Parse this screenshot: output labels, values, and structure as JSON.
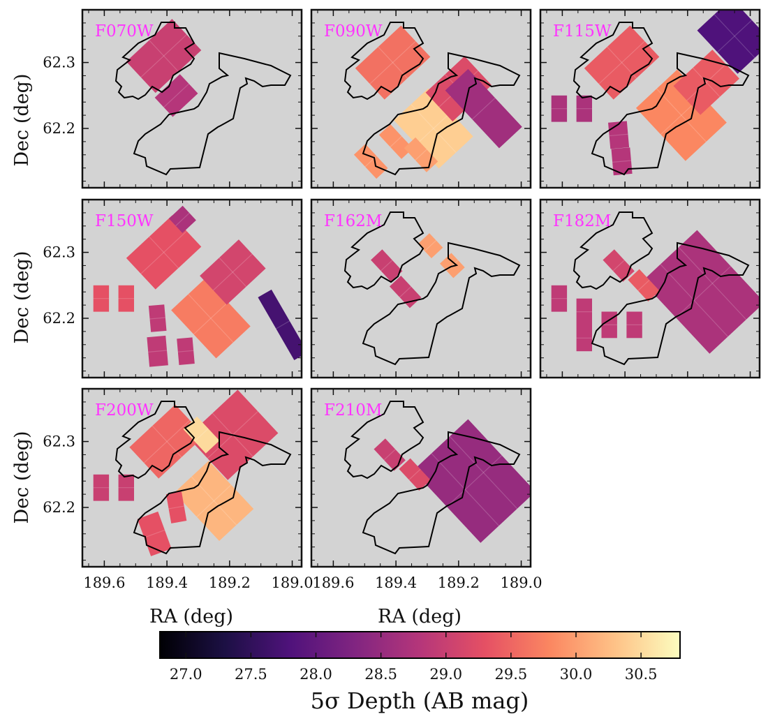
{
  "colors": {
    "panel_background": "#d3d3d3",
    "label_color": "#ff33ff",
    "footprint_outline": "#000000",
    "colormap": "magma",
    "colormap_stops": [
      "#000004",
      "#1c1044",
      "#4f127b",
      "#812581",
      "#b5367a",
      "#e55064",
      "#fb8761",
      "#fec287",
      "#fcfdbf"
    ]
  },
  "chart_data": {
    "type": "heatmap",
    "layout": "3x3 grid of sky-map panels, 8 panels used",
    "xlabel": "RA (deg)",
    "ylabel": "Dec (deg)",
    "x_ticks": [
      189.6,
      189.4,
      189.2,
      189.0
    ],
    "x_tick_labels": [
      "189.6",
      "189.4",
      "189.2",
      "189.0"
    ],
    "y_ticks": [
      62.2,
      62.3
    ],
    "y_tick_labels": [
      "62.2",
      "62.3"
    ],
    "xlim": [
      189.67,
      188.97
    ],
    "ylim": [
      62.11,
      62.38
    ],
    "colorbar": {
      "title": "5σ Depth (AB mag)",
      "range": [
        26.8,
        30.8
      ],
      "ticks": [
        27.0,
        27.5,
        28.0,
        28.5,
        29.0,
        29.5,
        30.0,
        30.5
      ],
      "tick_labels": [
        "27.0",
        "27.5",
        "28.0",
        "28.5",
        "29.0",
        "29.5",
        "30.0",
        "30.5"
      ]
    },
    "panels": [
      {
        "filter": "F070W",
        "row": 0,
        "col": 0,
        "show_ylabels": true,
        "show_xlabels": false,
        "fields": [
          {
            "ra": 189.41,
            "dec": 62.31,
            "depth": 29.0,
            "w": 0.2,
            "h": 0.065,
            "angle": -43
          },
          {
            "ra": 189.37,
            "dec": 62.25,
            "depth": 28.8,
            "w": 0.11,
            "h": 0.04,
            "angle": -43
          }
        ],
        "outlines": [
          "deep-west",
          "deep-east"
        ]
      },
      {
        "filter": "F090W",
        "row": 0,
        "col": 1,
        "show_ylabels": false,
        "show_xlabels": false,
        "fields": [
          {
            "ra": 189.41,
            "dec": 62.3,
            "depth": 29.6,
            "w": 0.2,
            "h": 0.065,
            "angle": -43
          },
          {
            "ra": 189.28,
            "dec": 62.2,
            "depth": 30.4,
            "w": 0.15,
            "h": 0.1,
            "angle": -43
          },
          {
            "ra": 189.2,
            "dec": 62.26,
            "depth": 29.2,
            "w": 0.17,
            "h": 0.06,
            "angle": -43
          },
          {
            "ra": 189.48,
            "dec": 62.15,
            "depth": 29.9,
            "w": 0.05,
            "h": 0.05,
            "angle": -43
          },
          {
            "ra": 189.4,
            "dec": 62.18,
            "depth": 29.9,
            "w": 0.05,
            "h": 0.05,
            "angle": -43
          },
          {
            "ra": 189.32,
            "dec": 62.16,
            "depth": 30.0,
            "w": 0.05,
            "h": 0.05,
            "angle": -43
          },
          {
            "ra": 189.12,
            "dec": 62.23,
            "depth": 28.6,
            "w": 0.1,
            "h": 0.12,
            "angle": -43
          }
        ],
        "outlines": [
          "deep-west",
          "deep-east"
        ]
      },
      {
        "filter": "F115W",
        "row": 0,
        "col": 2,
        "show_ylabels": false,
        "show_xlabels": false,
        "fields": [
          {
            "ra": 189.41,
            "dec": 62.3,
            "depth": 29.4,
            "w": 0.2,
            "h": 0.065,
            "angle": -43
          },
          {
            "ra": 189.22,
            "dec": 62.22,
            "depth": 29.8,
            "w": 0.18,
            "h": 0.11,
            "angle": -43
          },
          {
            "ra": 189.14,
            "dec": 62.27,
            "depth": 29.4,
            "w": 0.17,
            "h": 0.06,
            "angle": -43
          },
          {
            "ra": 189.05,
            "dec": 62.34,
            "depth": 27.8,
            "w": 0.15,
            "h": 0.09,
            "angle": -43
          },
          {
            "ra": 189.61,
            "dec": 62.23,
            "depth": 28.7,
            "w": 0.05,
            "h": 0.04,
            "angle": 0
          },
          {
            "ra": 189.53,
            "dec": 62.23,
            "depth": 28.7,
            "w": 0.05,
            "h": 0.04,
            "angle": 0
          },
          {
            "ra": 189.42,
            "dec": 62.19,
            "depth": 28.8,
            "w": 0.06,
            "h": 0.04,
            "angle": -5
          },
          {
            "ra": 189.41,
            "dec": 62.15,
            "depth": 28.8,
            "w": 0.06,
            "h": 0.04,
            "angle": -5
          }
        ],
        "outlines": [
          "deep-west",
          "deep-east"
        ]
      },
      {
        "filter": "F150W",
        "row": 1,
        "col": 0,
        "show_ylabels": true,
        "show_xlabels": false,
        "fields": [
          {
            "ra": 189.41,
            "dec": 62.3,
            "depth": 29.3,
            "w": 0.2,
            "h": 0.065,
            "angle": -43
          },
          {
            "ra": 189.26,
            "dec": 62.2,
            "depth": 29.7,
            "w": 0.15,
            "h": 0.1,
            "angle": -43
          },
          {
            "ra": 189.19,
            "dec": 62.27,
            "depth": 29.1,
            "w": 0.17,
            "h": 0.06,
            "angle": -43
          },
          {
            "ra": 189.03,
            "dec": 62.19,
            "depth": 27.7,
            "w": 0.05,
            "h": 0.11,
            "angle": -30
          },
          {
            "ra": 189.61,
            "dec": 62.23,
            "depth": 29.3,
            "w": 0.05,
            "h": 0.04,
            "angle": 0
          },
          {
            "ra": 189.53,
            "dec": 62.23,
            "depth": 29.3,
            "w": 0.05,
            "h": 0.04,
            "angle": 0
          },
          {
            "ra": 189.43,
            "dec": 62.2,
            "depth": 28.9,
            "w": 0.05,
            "h": 0.04,
            "angle": -5
          },
          {
            "ra": 189.43,
            "dec": 62.15,
            "depth": 28.9,
            "w": 0.06,
            "h": 0.045,
            "angle": -5
          },
          {
            "ra": 189.34,
            "dec": 62.15,
            "depth": 28.9,
            "w": 0.05,
            "h": 0.04,
            "angle": -5
          },
          {
            "ra": 189.35,
            "dec": 62.35,
            "depth": 28.7,
            "w": 0.06,
            "h": 0.03,
            "angle": -43
          }
        ],
        "outlines": []
      },
      {
        "filter": "F162M",
        "row": 1,
        "col": 1,
        "show_ylabels": false,
        "show_xlabels": false,
        "fields": [
          {
            "ra": 189.43,
            "dec": 62.28,
            "depth": 29.0,
            "w": 0.05,
            "h": 0.045,
            "angle": -43
          },
          {
            "ra": 189.37,
            "dec": 62.24,
            "depth": 29.0,
            "w": 0.05,
            "h": 0.045,
            "angle": -43
          },
          {
            "ra": 189.29,
            "dec": 62.31,
            "depth": 30.0,
            "w": 0.05,
            "h": 0.03,
            "angle": -43
          },
          {
            "ra": 189.22,
            "dec": 62.28,
            "depth": 30.0,
            "w": 0.05,
            "h": 0.03,
            "angle": -43
          }
        ],
        "outlines": [
          "deep-west",
          "deep-east"
        ]
      },
      {
        "filter": "F182M",
        "row": 1,
        "col": 2,
        "show_ylabels": false,
        "show_xlabels": false,
        "fields": [
          {
            "ra": 189.15,
            "dec": 62.24,
            "depth": 28.7,
            "w": 0.24,
            "h": 0.15,
            "angle": -43
          },
          {
            "ra": 189.42,
            "dec": 62.28,
            "depth": 29.1,
            "w": 0.05,
            "h": 0.045,
            "angle": -43
          },
          {
            "ra": 189.34,
            "dec": 62.25,
            "depth": 29.4,
            "w": 0.05,
            "h": 0.045,
            "angle": -43
          },
          {
            "ra": 189.61,
            "dec": 62.23,
            "depth": 28.9,
            "w": 0.05,
            "h": 0.04,
            "angle": 0
          },
          {
            "ra": 189.53,
            "dec": 62.21,
            "depth": 28.9,
            "w": 0.05,
            "h": 0.04,
            "angle": 0
          },
          {
            "ra": 189.53,
            "dec": 62.17,
            "depth": 28.9,
            "w": 0.05,
            "h": 0.04,
            "angle": 0
          },
          {
            "ra": 189.45,
            "dec": 62.19,
            "depth": 28.9,
            "w": 0.05,
            "h": 0.04,
            "angle": 0
          },
          {
            "ra": 189.37,
            "dec": 62.19,
            "depth": 28.9,
            "w": 0.05,
            "h": 0.04,
            "angle": 0
          }
        ],
        "outlines": [
          "deep-west",
          "deep-east"
        ]
      },
      {
        "filter": "F200W",
        "row": 2,
        "col": 0,
        "show_ylabels": true,
        "show_xlabels": true,
        "fields": [
          {
            "ra": 189.19,
            "dec": 62.31,
            "depth": 29.2,
            "w": 0.22,
            "h": 0.09,
            "angle": -43
          },
          {
            "ra": 189.4,
            "dec": 62.3,
            "depth": 29.5,
            "w": 0.2,
            "h": 0.065,
            "angle": -43
          },
          {
            "ra": 189.25,
            "dec": 62.21,
            "depth": 30.2,
            "w": 0.15,
            "h": 0.1,
            "angle": -43
          },
          {
            "ra": 189.29,
            "dec": 62.31,
            "depth": 30.5,
            "w": 0.06,
            "h": 0.05,
            "angle": -43
          },
          {
            "ra": 189.61,
            "dec": 62.23,
            "depth": 29.0,
            "w": 0.05,
            "h": 0.04,
            "angle": 0
          },
          {
            "ra": 189.53,
            "dec": 62.23,
            "depth": 29.0,
            "w": 0.05,
            "h": 0.04,
            "angle": 0
          },
          {
            "ra": 189.44,
            "dec": 62.16,
            "depth": 29.3,
            "w": 0.07,
            "h": 0.06,
            "angle": -20
          },
          {
            "ra": 189.37,
            "dec": 62.2,
            "depth": 29.3,
            "w": 0.05,
            "h": 0.045,
            "angle": -10
          }
        ],
        "outlines": [
          "deep-west",
          "deep-east"
        ]
      },
      {
        "filter": "F210M",
        "row": 2,
        "col": 1,
        "show_ylabels": false,
        "show_xlabels": true,
        "fields": [
          {
            "ra": 189.15,
            "dec": 62.24,
            "depth": 28.5,
            "w": 0.24,
            "h": 0.15,
            "angle": -43
          },
          {
            "ra": 189.42,
            "dec": 62.28,
            "depth": 29.0,
            "w": 0.05,
            "h": 0.045,
            "angle": -43
          },
          {
            "ra": 189.34,
            "dec": 62.25,
            "depth": 29.2,
            "w": 0.05,
            "h": 0.045,
            "angle": -43
          }
        ],
        "outlines": [
          "deep-west",
          "deep-east"
        ]
      }
    ]
  }
}
